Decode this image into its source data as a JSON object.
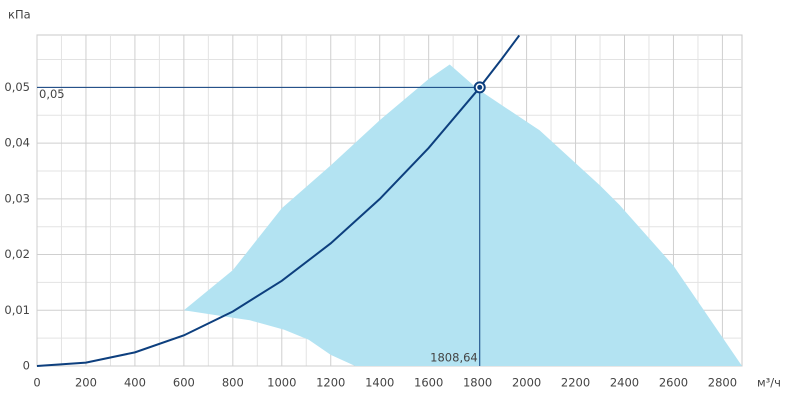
{
  "chart_data": {
    "type": "line",
    "y_label": "кПа",
    "x_label": "м³/ч",
    "xlim": [
      0,
      2880
    ],
    "ylim": [
      0,
      0.0594
    ],
    "xticks": [
      0,
      200,
      400,
      600,
      800,
      1000,
      1200,
      1400,
      1600,
      1800,
      2000,
      2200,
      2400,
      2600,
      2800
    ],
    "yticks": [
      0,
      {
        "value": 0.01,
        "label": "0,01"
      },
      {
        "value": 0.02,
        "label": "0,02"
      },
      {
        "value": 0.03,
        "label": "0,03"
      },
      {
        "value": 0.04,
        "label": "0,04"
      },
      {
        "value": 0.05,
        "label": "0,05"
      }
    ],
    "xminor_ticks": [
      100,
      300,
      500,
      700,
      900,
      1100,
      1300,
      1500,
      1700,
      1900,
      2100,
      2300,
      2500,
      2700
    ],
    "yminor_ticks": [
      0.005,
      0.015,
      0.025,
      0.035,
      0.045,
      0.055
    ],
    "grid": true,
    "series": [
      {
        "type": "area",
        "color": "#b3e3f2",
        "x": [
          600,
          800,
          1000,
          1200,
          1400,
          1600,
          1686,
          1800,
          2053,
          2300,
          2380,
          2600,
          2880,
          1300,
          1200,
          1110,
          1010,
          870,
          810,
          600
        ],
        "values": [
          0.01,
          0.0172,
          0.0283,
          0.036,
          0.0441,
          0.0515,
          0.0541,
          0.0497,
          0.0423,
          0.0324,
          0.0289,
          0.018,
          0,
          0,
          0.002,
          0.0047,
          0.0065,
          0.0082,
          0.0086,
          0.01
        ]
      },
      {
        "type": "line",
        "color": "#0d3f7e",
        "x": [
          0,
          200,
          400,
          600,
          800,
          1000,
          1200,
          1400,
          1600,
          1800,
          1808.64,
          1900,
          1970
        ],
        "values": [
          0,
          0.000611,
          0.002446,
          0.005503,
          0.009782,
          0.015285,
          0.02201,
          0.02996,
          0.03913,
          0.04952,
          0.05,
          0.05518,
          0.05932
        ]
      }
    ],
    "point": {
      "x": 1808.64,
      "y": 0.05,
      "x_label": "1808,64",
      "y_label": "0,05",
      "color": "#0d3f7e"
    }
  }
}
